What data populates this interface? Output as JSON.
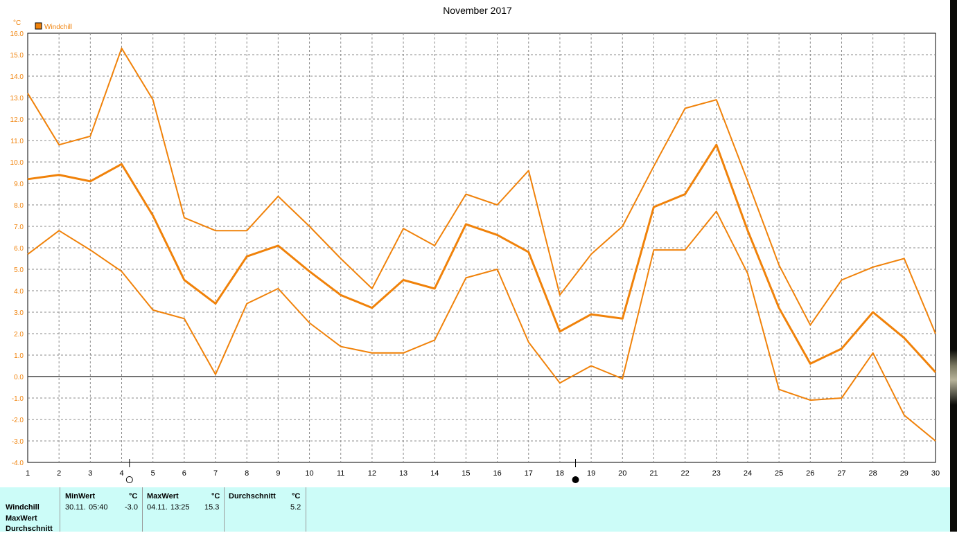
{
  "chart_data": {
    "type": "line",
    "title": "November 2017",
    "ylabel": "°C",
    "ylim": [
      -4,
      16
    ],
    "yticks": [
      "16.0",
      "15.0",
      "14.0",
      "13.0",
      "12.0",
      "11.0",
      "10.0",
      "9.0",
      "8.0",
      "7.0",
      "6.0",
      "5.0",
      "4.0",
      "3.0",
      "2.0",
      "1.0",
      "0.0",
      "-1.0",
      "-2.0",
      "-3.0",
      "-4.0"
    ],
    "x": [
      1,
      2,
      3,
      4,
      5,
      6,
      7,
      8,
      9,
      10,
      11,
      12,
      13,
      14,
      15,
      16,
      17,
      18,
      19,
      20,
      21,
      22,
      23,
      24,
      25,
      26,
      27,
      28,
      29,
      30
    ],
    "grid": true,
    "legend": "Windchill",
    "color": "#f0820a",
    "series": [
      {
        "role": "max",
        "values": [
          13.2,
          10.8,
          11.2,
          15.3,
          12.9,
          7.4,
          6.8,
          6.8,
          8.4,
          7.0,
          5.5,
          4.1,
          6.9,
          6.1,
          8.5,
          8.0,
          9.6,
          3.8,
          5.7,
          7.0,
          9.8,
          12.5,
          12.9,
          9.1,
          5.2,
          2.4,
          4.5,
          5.1,
          5.5,
          2.0
        ]
      },
      {
        "role": "avg",
        "values": [
          9.2,
          9.4,
          9.1,
          9.9,
          7.5,
          4.5,
          3.4,
          5.6,
          6.1,
          4.9,
          3.8,
          3.2,
          4.5,
          4.1,
          7.1,
          6.6,
          5.8,
          2.1,
          2.9,
          2.7,
          7.9,
          8.5,
          10.8,
          6.8,
          3.2,
          0.6,
          1.3,
          3.0,
          1.8,
          0.2
        ]
      },
      {
        "role": "min",
        "values": [
          5.7,
          6.8,
          5.9,
          4.9,
          3.1,
          2.7,
          0.1,
          3.4,
          4.1,
          2.5,
          1.4,
          1.1,
          1.1,
          1.7,
          4.6,
          5.0,
          1.6,
          -0.3,
          0.5,
          -0.1,
          5.9,
          5.9,
          7.7,
          4.8,
          -0.6,
          -1.1,
          -1.0,
          1.1,
          -1.8,
          -3.0
        ]
      }
    ],
    "moon_phases": [
      {
        "at": 4.25,
        "phase": "full"
      },
      {
        "at": 18.5,
        "phase": "new"
      }
    ]
  },
  "stats": {
    "row_labels": [
      "Windchill",
      "MaxWert",
      "Durchschnitt"
    ],
    "col_min": {
      "label": "MinWert",
      "unit": "°C",
      "date": "30.11.",
      "time": "05:40",
      "value": "-3.0"
    },
    "col_max": {
      "label": "MaxWert",
      "unit": "°C",
      "date": "04.11.",
      "time": "13:25",
      "value": "15.3"
    },
    "col_avg": {
      "label": "Durchschnitt",
      "unit": "°C",
      "value": "5.2"
    }
  }
}
